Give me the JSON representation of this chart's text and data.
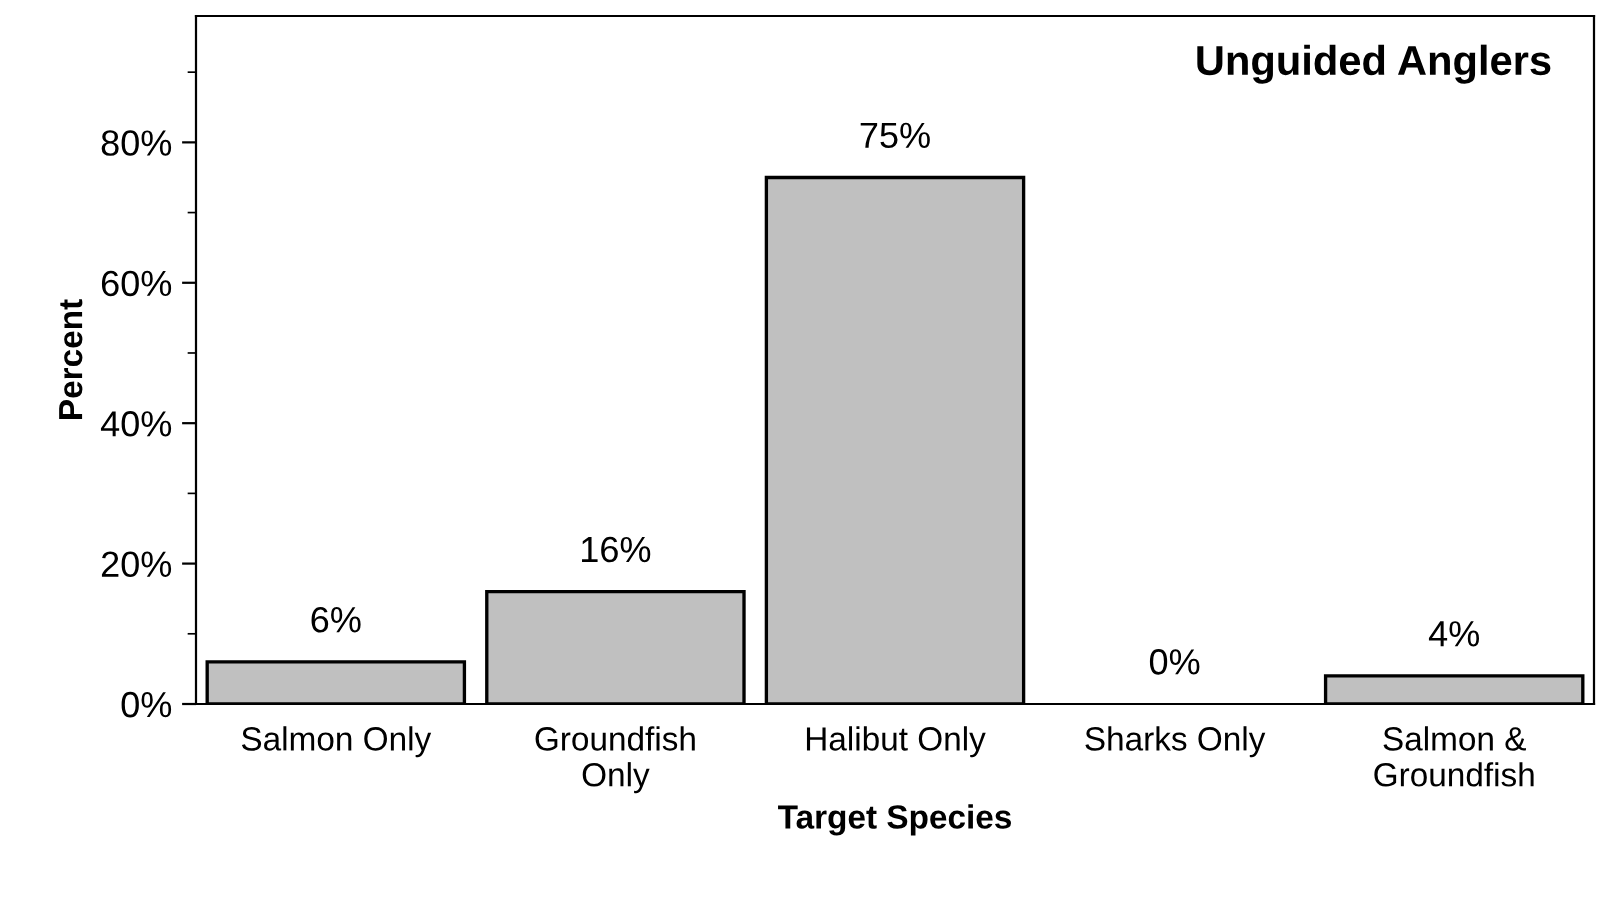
{
  "chart_data": {
    "type": "bar",
    "title": "Unguided Anglers",
    "xlabel": "Target Species",
    "ylabel": "Percent",
    "categories": [
      "Salmon Only",
      "Groundfish\nOnly",
      "Halibut Only",
      "Sharks Only",
      "Salmon &\nGroundfish"
    ],
    "values": [
      6,
      16,
      75,
      0,
      4
    ],
    "value_labels": [
      "6%",
      "16%",
      "75%",
      "0%",
      "4%"
    ],
    "color": "#c0c0c0",
    "ylim": [
      0,
      98
    ],
    "yticks": [
      {
        "value": 0,
        "label": "0%"
      },
      {
        "value": 10,
        "label": null
      },
      {
        "value": 20,
        "label": "20%"
      },
      {
        "value": 30,
        "label": null
      },
      {
        "value": 40,
        "label": "40%"
      },
      {
        "value": 50,
        "label": null
      },
      {
        "value": 60,
        "label": "60%"
      },
      {
        "value": 70,
        "label": null
      },
      {
        "value": 80,
        "label": "80%"
      },
      {
        "value": 90,
        "label": null
      }
    ],
    "grid": false
  }
}
